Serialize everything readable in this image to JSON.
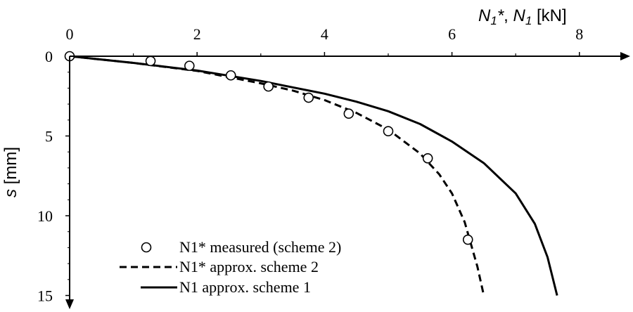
{
  "chart_data": {
    "type": "line",
    "title": "",
    "xlabel": {
      "sym": "N",
      "sub": "1",
      "sup": "*",
      "sep": ", ",
      "sym2": "N",
      "sub2": "1",
      "unit": " [kN]"
    },
    "ylabel": {
      "sym": "s",
      "unit": " [mm]"
    },
    "xlim": [
      0,
      8.7
    ],
    "ylim": [
      0,
      15
    ],
    "x_ticks": [
      "0",
      "2",
      "4",
      "6",
      "8"
    ],
    "y_ticks": [
      "0",
      "5",
      "10",
      "15"
    ],
    "y_inverted": true,
    "grid": false,
    "legend_position": "bottom-left",
    "series": [
      {
        "name": "N1* measured (scheme 2)",
        "style": "markers",
        "marker": "open-circle",
        "x": [
          0,
          1.27,
          1.88,
          2.53,
          3.12,
          3.75,
          4.38,
          5.0,
          5.62,
          6.25
        ],
        "y": [
          0,
          0.3,
          0.6,
          1.2,
          1.9,
          2.6,
          3.6,
          4.7,
          6.4,
          11.5
        ]
      },
      {
        "name": "N1* approx. scheme 2",
        "style": "dashed",
        "x": [
          0,
          1.0,
          2.0,
          3.0,
          3.5,
          4.0,
          4.5,
          5.0,
          5.5,
          5.8,
          6.0,
          6.2,
          6.4,
          6.5
        ],
        "y": [
          0,
          0.42,
          0.92,
          1.7,
          2.15,
          2.75,
          3.55,
          4.6,
          6.1,
          7.4,
          8.6,
          10.4,
          13.2,
          15.0
        ]
      },
      {
        "name": "N1 approx. scheme 1",
        "style": "solid",
        "x": [
          0,
          1.0,
          2.0,
          3.0,
          3.5,
          4.0,
          4.5,
          5.0,
          5.5,
          6.0,
          6.5,
          7.0,
          7.3,
          7.5,
          7.65
        ],
        "y": [
          0,
          0.42,
          0.9,
          1.55,
          1.95,
          2.35,
          2.85,
          3.45,
          4.25,
          5.35,
          6.7,
          8.6,
          10.5,
          12.6,
          15.0
        ]
      }
    ]
  }
}
